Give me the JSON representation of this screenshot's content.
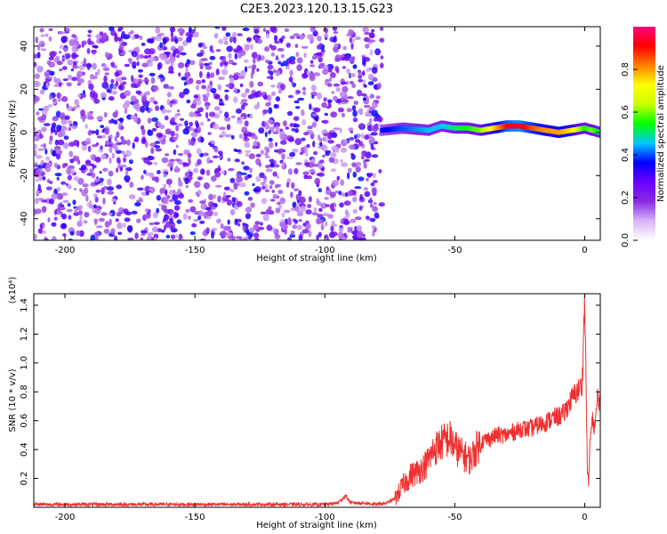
{
  "title": "C2E3.2023.120.13.15.G23",
  "chart_data": [
    {
      "type": "heatmap",
      "xlabel": "Height of straight line (km)",
      "ylabel": "Frequency (Hz)",
      "xlim": [
        -212,
        6
      ],
      "ylim": [
        -50,
        49
      ],
      "xticks": [
        -200,
        -150,
        -100,
        -50,
        0
      ],
      "yticks": [
        -40,
        -20,
        0,
        20,
        40
      ],
      "colorbar": {
        "label": "Normalized spectral amplitude",
        "range": [
          0.0,
          1.0
        ],
        "ticks": [
          0.0,
          0.2,
          0.4,
          0.6,
          0.8
        ],
        "colors": [
          "#ffffff",
          "#d8b4f8",
          "#8a2be2",
          "#6a00ff",
          "#0000ff",
          "#00c8ff",
          "#00ff00",
          "#c8ff00",
          "#ffff00",
          "#ff8000",
          "#ff0000",
          "#ff0080"
        ]
      },
      "noise_region_x": [
        -212,
        -78
      ],
      "signal_ridge": {
        "x": [
          -78,
          -70,
          -60,
          -55,
          -50,
          -45,
          -40,
          -35,
          -30,
          -25,
          -20,
          -15,
          -10,
          -5,
          0,
          3,
          6
        ],
        "freq_hz": [
          1,
          2,
          1,
          3,
          2,
          2,
          1,
          2,
          3,
          3,
          2,
          1,
          0,
          1,
          2,
          1,
          0
        ],
        "amplitude": [
          0.35,
          0.4,
          0.45,
          0.45,
          0.5,
          0.55,
          0.6,
          0.75,
          0.9,
          0.95,
          0.85,
          0.8,
          0.8,
          0.75,
          0.55,
          0.6,
          0.5
        ]
      }
    },
    {
      "type": "line",
      "xlabel": "Height of straight line (km)",
      "ylabel": "SNR (10 * v/v)",
      "y_multiplier": "(x10⁴)",
      "xlim": [
        -212,
        6
      ],
      "ylim": [
        0,
        1.48
      ],
      "xticks": [
        -200,
        -150,
        -100,
        -50,
        0
      ],
      "yticks": [
        0.2,
        0.4,
        0.6,
        0.8,
        1.0,
        1.2,
        1.4
      ],
      "color": "#ee3030",
      "series": [
        {
          "x": [
            -212,
            -180,
            -150,
            -120,
            -100,
            -95,
            -92,
            -90,
            -85,
            -80,
            -76,
            -73,
            -70,
            -67,
            -64,
            -61,
            -58,
            -55,
            -52,
            -50,
            -48,
            -46,
            -44,
            -42,
            -40,
            -38,
            -36,
            -34,
            -32,
            -30,
            -28,
            -26,
            -24,
            -22,
            -20,
            -18,
            -16,
            -14,
            -12,
            -10,
            -8,
            -6,
            -4,
            -2,
            -1,
            0,
            0.5,
            1,
            1.5,
            2,
            3,
            4,
            5,
            6
          ],
          "values": [
            0.02,
            0.02,
            0.02,
            0.02,
            0.02,
            0.03,
            0.08,
            0.03,
            0.03,
            0.02,
            0.03,
            0.06,
            0.15,
            0.22,
            0.25,
            0.3,
            0.4,
            0.45,
            0.48,
            0.42,
            0.38,
            0.35,
            0.33,
            0.4,
            0.45,
            0.47,
            0.48,
            0.5,
            0.5,
            0.5,
            0.52,
            0.53,
            0.55,
            0.54,
            0.55,
            0.57,
            0.58,
            0.6,
            0.62,
            0.63,
            0.65,
            0.72,
            0.78,
            0.82,
            0.85,
            1.45,
            0.9,
            0.3,
            0.15,
            0.45,
            0.6,
            0.55,
            0.78,
            0.72
          ]
        }
      ]
    }
  ]
}
